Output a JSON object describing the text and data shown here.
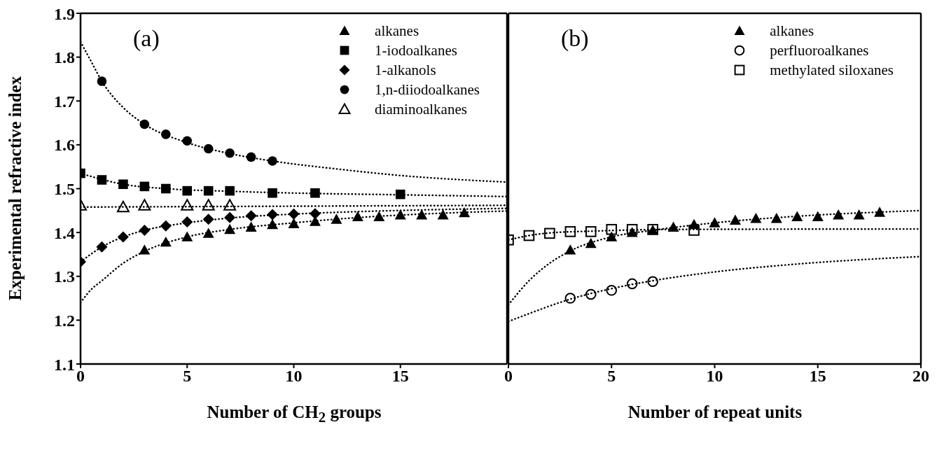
{
  "chart_data": [
    {
      "type": "scatter",
      "ylabel": "Experimental refractive index",
      "xlabel": "Number of CH$_{2}$ groups",
      "annotations": [
        "(a)"
      ],
      "xlim": [
        0,
        20
      ],
      "xticks": [
        0,
        5,
        10,
        15
      ],
      "ylim": [
        1.1,
        1.9
      ],
      "yticks": [
        1.1,
        1.2,
        1.3,
        1.4,
        1.5,
        1.6,
        1.7,
        1.8,
        1.9
      ],
      "legend": "top right",
      "series": [
        {
          "name": "alkanes",
          "type": "scatter",
          "marker": "triangle",
          "color": "#000000",
          "x": [
            3,
            4,
            5,
            6,
            7,
            8,
            9,
            10,
            11,
            12,
            13,
            14,
            15,
            16,
            17,
            18
          ],
          "values": [
            1.36,
            1.378,
            1.39,
            1.398,
            1.407,
            1.412,
            1.418,
            1.42,
            1.425,
            1.43,
            1.436,
            1.436,
            1.44,
            1.44,
            1.44,
            1.445
          ]
        },
        {
          "name": "1-iodoalkanes",
          "type": "scatter",
          "marker": "square",
          "color": "#000000",
          "x": [
            0,
            1,
            2,
            3,
            4,
            5,
            6,
            7,
            9,
            11,
            15
          ],
          "values": [
            1.535,
            1.52,
            1.51,
            1.505,
            1.5,
            1.495,
            1.495,
            1.495,
            1.49,
            1.49,
            1.487
          ]
        },
        {
          "name": "1-alkanols",
          "type": "scatter",
          "marker": "diamond",
          "color": "#000000",
          "x": [
            0,
            1,
            2,
            3,
            4,
            5,
            6,
            7,
            8,
            9,
            10,
            11
          ],
          "values": [
            1.333,
            1.367,
            1.39,
            1.405,
            1.415,
            1.424,
            1.43,
            1.434,
            1.438,
            1.441,
            1.442,
            1.443
          ]
        },
        {
          "name": "1,n-diiodoalkanes",
          "type": "scatter",
          "marker": "circle",
          "color": "#000000",
          "x": [
            1,
            3,
            4,
            5,
            6,
            7,
            8,
            9
          ],
          "values": [
            1.745,
            1.647,
            1.624,
            1.609,
            1.591,
            1.581,
            1.572,
            1.563
          ]
        },
        {
          "name": "diaminoalkanes",
          "type": "scatter",
          "marker": "triangle-open",
          "color": "#000000",
          "x": [
            0,
            2,
            3,
            5,
            6,
            7
          ],
          "values": [
            1.462,
            1.458,
            1.462,
            1.462,
            1.462,
            1.462
          ]
        },
        {
          "type": "line",
          "line_style": "dotted",
          "marker": "none",
          "color": "#000000",
          "x": [
            0,
            0.5,
            1,
            2,
            3,
            5,
            7,
            10,
            13,
            16,
            20
          ],
          "values": [
            1.24,
            1.27,
            1.29,
            1.33,
            1.357,
            1.39,
            1.407,
            1.422,
            1.434,
            1.442,
            1.449
          ]
        },
        {
          "type": "line",
          "line_style": "dotted",
          "marker": "none",
          "color": "#000000",
          "x": [
            0,
            2,
            4,
            7,
            10,
            15,
            20
          ],
          "values": [
            1.535,
            1.51,
            1.5,
            1.494,
            1.49,
            1.486,
            1.482
          ]
        },
        {
          "type": "line",
          "line_style": "dotted",
          "marker": "none",
          "color": "#000000",
          "x": [
            0,
            1,
            2,
            3,
            5,
            7,
            10,
            14,
            20
          ],
          "values": [
            1.333,
            1.367,
            1.39,
            1.405,
            1.422,
            1.433,
            1.442,
            1.449,
            1.455
          ]
        },
        {
          "type": "line",
          "line_style": "dotted",
          "marker": "none",
          "color": "#000000",
          "x": [
            0,
            0.5,
            1,
            2,
            3,
            5,
            7,
            9,
            12,
            15,
            20
          ],
          "values": [
            1.835,
            1.79,
            1.745,
            1.685,
            1.647,
            1.605,
            1.58,
            1.563,
            1.545,
            1.53,
            1.515
          ]
        },
        {
          "type": "line",
          "line_style": "dotted",
          "marker": "none",
          "color": "#000000",
          "x": [
            0,
            20
          ],
          "values": [
            1.458,
            1.462
          ]
        }
      ]
    },
    {
      "type": "scatter",
      "xlabel": "Number of repeat units",
      "annotations": [
        "(b)"
      ],
      "xlim": [
        0,
        20
      ],
      "xticks": [
        0,
        5,
        10,
        15,
        20
      ],
      "ylim": [
        1.1,
        1.9
      ],
      "yticks": [
        1.1,
        1.2,
        1.3,
        1.4,
        1.5,
        1.6,
        1.7,
        1.8,
        1.9
      ],
      "tick_labels": "x",
      "legend": "top right",
      "series": [
        {
          "name": "alkanes",
          "type": "scatter",
          "marker": "triangle",
          "color": "#000000",
          "x": [
            3,
            4,
            5,
            6,
            7,
            8,
            9,
            10,
            11,
            12,
            13,
            14,
            15,
            16,
            17,
            18
          ],
          "values": [
            1.36,
            1.375,
            1.39,
            1.4,
            1.405,
            1.412,
            1.418,
            1.422,
            1.428,
            1.432,
            1.432,
            1.436,
            1.436,
            1.44,
            1.44,
            1.446
          ]
        },
        {
          "name": "perfluoroalkanes",
          "type": "scatter",
          "marker": "circle-open",
          "color": "#000000",
          "x": [
            3,
            4,
            5,
            6,
            7
          ],
          "values": [
            1.25,
            1.259,
            1.268,
            1.283,
            1.288
          ]
        },
        {
          "name": "methylated siloxanes",
          "type": "scatter",
          "marker": "square-open",
          "color": "#000000",
          "x": [
            0,
            1,
            2,
            3,
            4,
            5,
            6,
            7,
            9
          ],
          "values": [
            1.383,
            1.393,
            1.398,
            1.402,
            1.402,
            1.407,
            1.407,
            1.407,
            1.405
          ]
        },
        {
          "type": "line",
          "line_style": "dotted",
          "marker": "none",
          "color": "#000000",
          "x": [
            0,
            1,
            2,
            3,
            5,
            7,
            10,
            14,
            20
          ],
          "values": [
            1.235,
            1.29,
            1.33,
            1.358,
            1.39,
            1.405,
            1.422,
            1.437,
            1.45
          ]
        },
        {
          "type": "line",
          "line_style": "dotted",
          "marker": "none",
          "color": "#000000",
          "x": [
            0,
            1,
            3,
            5,
            7,
            10,
            14,
            20
          ],
          "values": [
            1.197,
            1.215,
            1.248,
            1.272,
            1.29,
            1.31,
            1.328,
            1.345
          ]
        },
        {
          "type": "line",
          "line_style": "dotted",
          "marker": "none",
          "color": "#000000",
          "x": [
            0,
            1,
            2,
            4,
            8,
            20
          ],
          "values": [
            1.383,
            1.393,
            1.399,
            1.403,
            1.407,
            1.408
          ]
        }
      ]
    }
  ]
}
